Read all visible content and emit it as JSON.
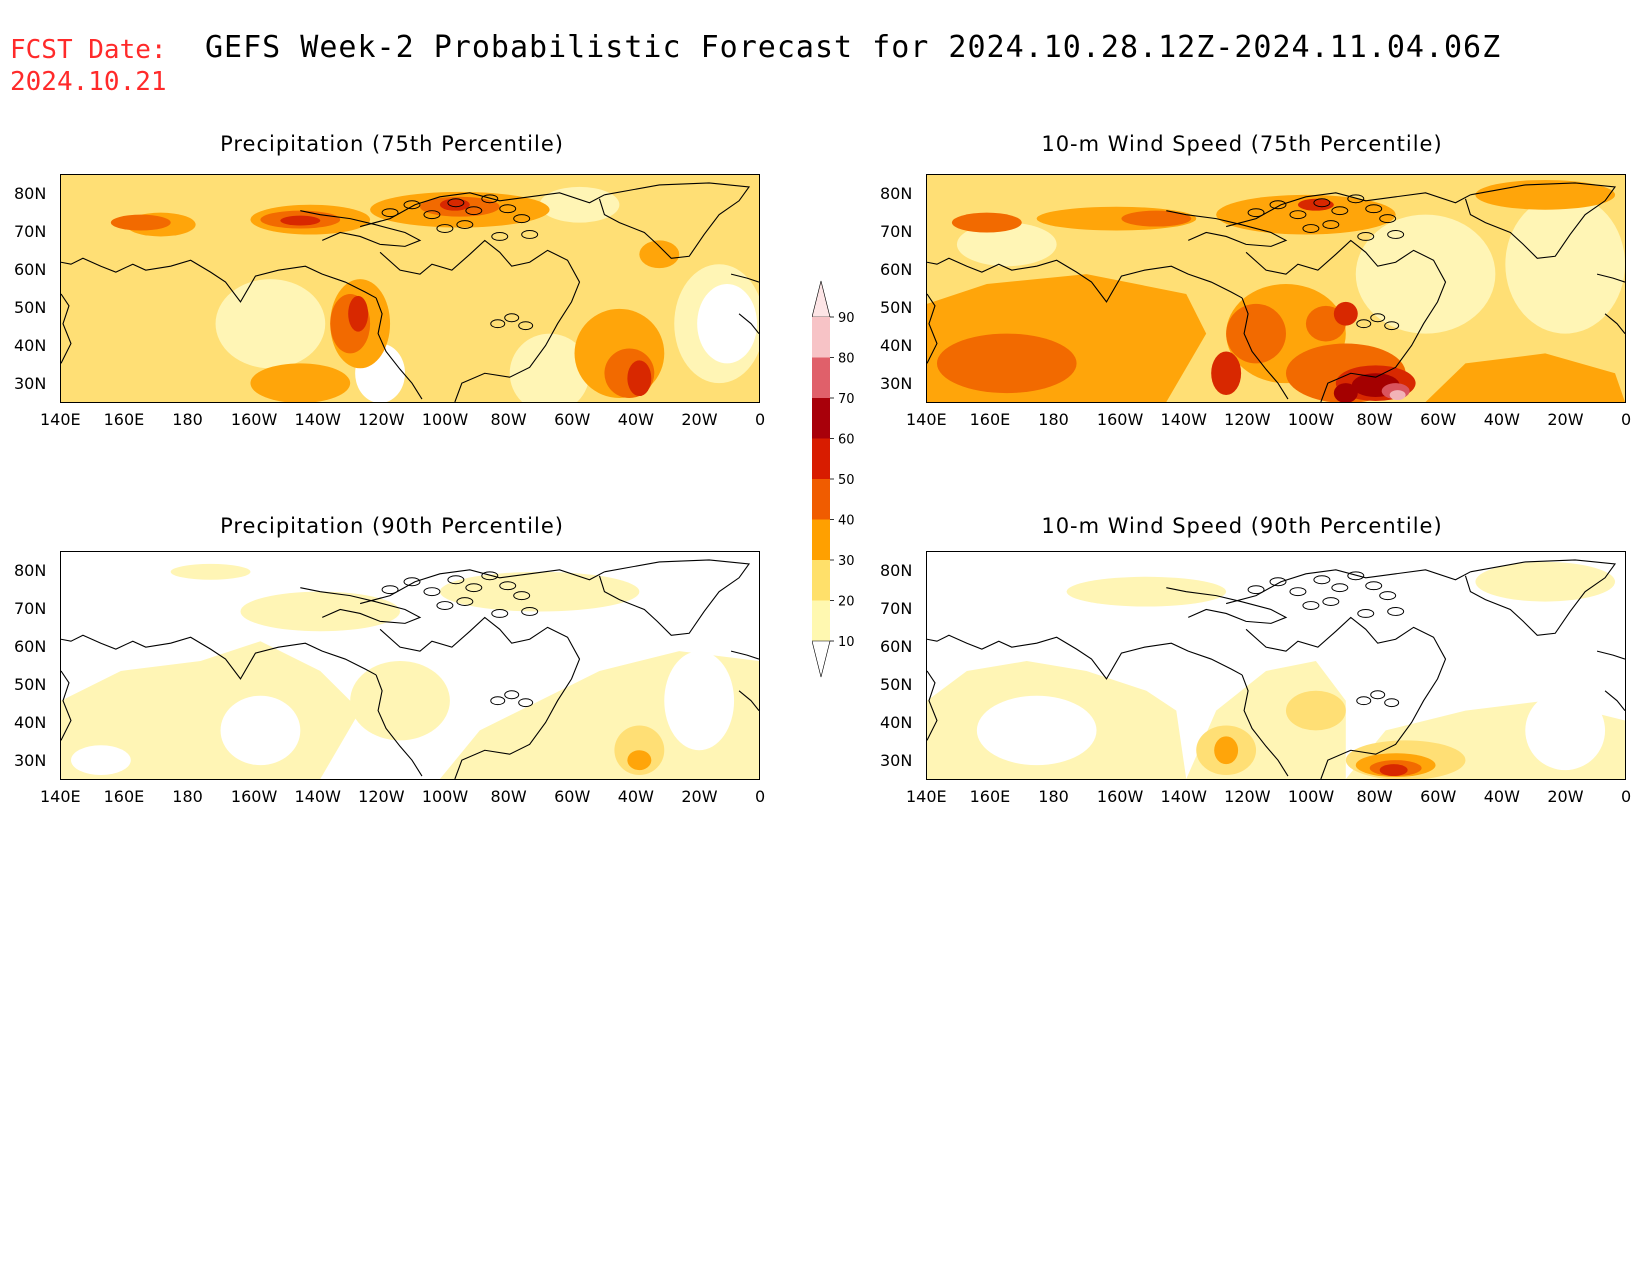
{
  "header": {
    "fcst_label": "FCST Date:",
    "fcst_date": "2024.10.21",
    "title": "GEFS Week-2 Probabilistic Forecast for 2024.10.28.12Z-2024.11.04.06Z"
  },
  "panels": [
    {
      "id": "p75",
      "title": "Precipitation (75th Percentile)"
    },
    {
      "id": "w75",
      "title": "10-m Wind Speed (75th Percentile)"
    },
    {
      "id": "p90",
      "title": "Precipitation (90th Percentile)"
    },
    {
      "id": "w90",
      "title": "10-m Wind Speed (90th Percentile)"
    }
  ],
  "axes": {
    "lat_labels": [
      "80N",
      "70N",
      "60N",
      "50N",
      "40N",
      "30N"
    ],
    "lon_labels": [
      "140E",
      "160E",
      "180",
      "160W",
      "140W",
      "120W",
      "100W",
      "80W",
      "60W",
      "40W",
      "20W",
      "0"
    ]
  },
  "colorbar": {
    "levels": [
      "90",
      "80",
      "70",
      "60",
      "50",
      "40",
      "30",
      "20",
      "10"
    ],
    "colors": [
      "#f7c3c6",
      "#e0606a",
      "#a8000a",
      "#d81c00",
      "#f05c00",
      "#ffa000",
      "#ffe06a",
      "#fff8b0"
    ]
  },
  "palette": {
    "c10": "#fff5b5",
    "c20": "#ffdf75",
    "c30": "#ffa50a",
    "c40": "#f26a00",
    "c50": "#d82800",
    "c60": "#a40000",
    "c70": "#d9545e",
    "c80": "#f2b3b8"
  }
}
